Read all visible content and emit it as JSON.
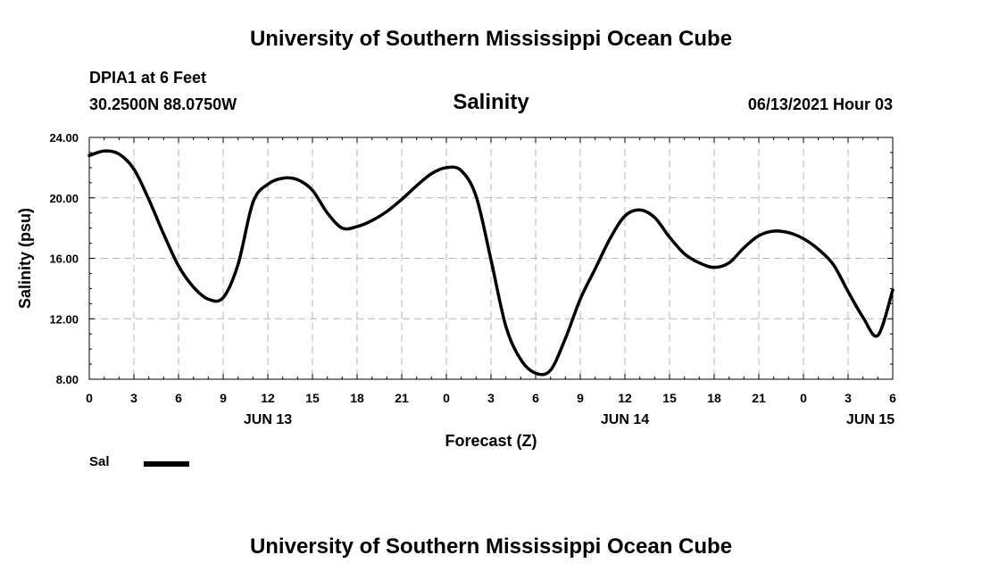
{
  "header": {
    "title": "University of Southern Mississippi Ocean Cube",
    "station": "DPIA1 at 6 Feet",
    "coordinates": "30.2500N  88.0750W",
    "timestamp": "06/13/2021 Hour 03"
  },
  "footer": {
    "title": "University of Southern Mississippi Ocean Cube"
  },
  "chart_data": {
    "type": "line",
    "title": "Salinity",
    "xlabel": "Forecast (Z)",
    "ylabel": "Salinity (psu)",
    "ylim": [
      8,
      24
    ],
    "xlim": [
      0,
      54
    ],
    "x_unit": "hours from 00Z JUN 13",
    "yticks": [
      "8.00",
      "12.00",
      "16.00",
      "20.00",
      "24.00"
    ],
    "ytick_values": [
      8,
      12,
      16,
      20,
      24
    ],
    "xtick_hours": [
      0,
      3,
      6,
      9,
      12,
      15,
      18,
      21,
      24,
      27,
      30,
      33,
      36,
      39,
      42,
      45,
      48,
      51,
      54
    ],
    "xticks": [
      "0",
      "3",
      "6",
      "9",
      "12",
      "15",
      "18",
      "21",
      "0",
      "3",
      "6",
      "9",
      "12",
      "15",
      "18",
      "21",
      "0",
      "3",
      "6"
    ],
    "date_labels": [
      {
        "label": "JUN 13",
        "hour": 12
      },
      {
        "label": "JUN 14",
        "hour": 36
      },
      {
        "label": "JUN 15",
        "hour": 52.5
      }
    ],
    "grid": true,
    "legend_position": "bottom-left",
    "series": [
      {
        "name": "Sal",
        "color": "#000000",
        "x": [
          0,
          1,
          2,
          3,
          4,
          5,
          6,
          7,
          8,
          9,
          10,
          11,
          12,
          13,
          14,
          15,
          16,
          17,
          18,
          19,
          20,
          21,
          22,
          23,
          24,
          25,
          26,
          27,
          28,
          29,
          30,
          31,
          32,
          33,
          34,
          35,
          36,
          37,
          38,
          39,
          40,
          41,
          42,
          43,
          44,
          45,
          46,
          47,
          48,
          49,
          50,
          51,
          52,
          53,
          54
        ],
        "values": [
          22.8,
          23.1,
          22.9,
          21.9,
          19.9,
          17.6,
          15.5,
          14.1,
          13.3,
          13.4,
          15.6,
          19.7,
          20.9,
          21.3,
          21.2,
          20.5,
          19.0,
          18.0,
          18.1,
          18.5,
          19.1,
          19.9,
          20.8,
          21.6,
          22.0,
          21.8,
          20.1,
          15.9,
          11.5,
          9.3,
          8.4,
          8.6,
          10.7,
          13.3,
          15.3,
          17.3,
          18.8,
          19.2,
          18.7,
          17.4,
          16.3,
          15.7,
          15.4,
          15.7,
          16.7,
          17.5,
          17.8,
          17.7,
          17.3,
          16.6,
          15.6,
          13.8,
          12.1,
          10.9,
          13.9
        ]
      }
    ]
  }
}
